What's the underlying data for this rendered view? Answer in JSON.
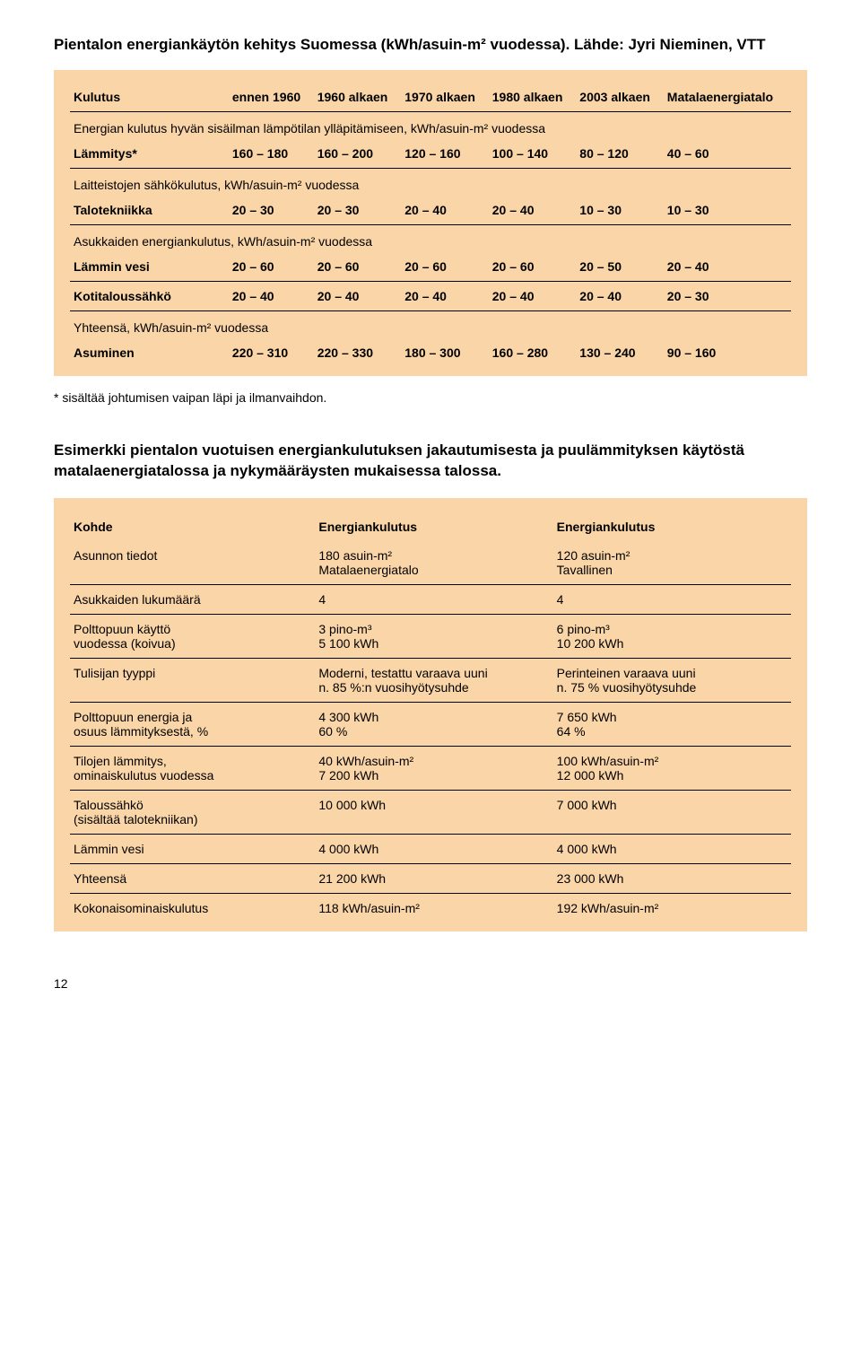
{
  "section1": {
    "title": "Pientalon energiankäytön kehitys Suomessa (kWh/asuin-m² vuodessa). Lähde: Jyri Nieminen, VTT",
    "headers": [
      "Kulutus",
      "ennen 1960",
      "1960 alkaen",
      "1970 alkaen",
      "1980 alkaen",
      "2003 alkaen",
      "Matalaenergiatalo"
    ],
    "group1_label": "Energian kulutus hyvän sisäilman lämpötilan ylläpitämiseen, kWh/asuin-m² vuodessa",
    "row1": [
      "Lämmitys*",
      "160 – 180",
      "160 – 200",
      "120 – 160",
      "100 – 140",
      "80 – 120",
      "40 – 60"
    ],
    "group2_label": "Laitteistojen sähkökulutus, kWh/asuin-m² vuodessa",
    "row2": [
      "Talotekniikka",
      "20 – 30",
      "20 – 30",
      "20 – 40",
      "20 – 40",
      "10 – 30",
      "10 – 30"
    ],
    "group3_label": "Asukkaiden energiankulutus, kWh/asuin-m² vuodessa",
    "row3": [
      "Lämmin vesi",
      "20 – 60",
      "20 – 60",
      "20 – 60",
      "20 – 60",
      "20 – 50",
      "20 – 40"
    ],
    "row4": [
      "Kotitaloussähkö",
      "20 – 40",
      "20 – 40",
      "20 – 40",
      "20 – 40",
      "20 – 40",
      "20 – 30"
    ],
    "group4_label": "Yhteensä, kWh/asuin-m² vuodessa",
    "row5": [
      "Asuminen",
      "220 – 310",
      "220 – 330",
      "180 – 300",
      "160 – 280",
      "130 – 240",
      "90 – 160"
    ],
    "footnote": "* sisältää johtumisen vaipan läpi ja ilmanvaihdon."
  },
  "section2": {
    "title": "Esimerkki pientalon vuotuisen energiankulutuksen jakautumisesta ja puulämmityksen käytöstä matalaenergiatalossa ja nykymääräysten mukaisessa talossa.",
    "headers": [
      "Kohde",
      "Energiankulutus",
      "Energiankulutus"
    ],
    "rows": [
      {
        "label": "Asunnon tiedot",
        "c1a": "180 asuin-m²",
        "c1b": "Matalaenergiatalo",
        "c2a": "120 asuin-m²",
        "c2b": "Tavallinen"
      },
      {
        "label": "Asukkaiden lukumäärä",
        "c1a": "4",
        "c1b": "",
        "c2a": "4",
        "c2b": ""
      },
      {
        "label": "Polttopuun käyttö",
        "label2": "vuodessa (koivua)",
        "c1a": "3 pino-m³",
        "c1b": "5 100 kWh",
        "c2a": "6 pino-m³",
        "c2b": "10 200 kWh"
      },
      {
        "label": "Tulisijan tyyppi",
        "c1a": "Moderni, testattu varaava uuni",
        "c1b": "n. 85 %:n vuosihyötysuhde",
        "c2a": "Perinteinen varaava uuni",
        "c2b": "n. 75 % vuosihyötysuhde"
      },
      {
        "label": "Polttopuun energia ja",
        "label2": "osuus lämmityksestä, %",
        "c1a": "4 300 kWh",
        "c1b": "60 %",
        "c2a": "7 650 kWh",
        "c2b": "64 %"
      },
      {
        "label": "Tilojen lämmitys,",
        "label2": "ominaiskulutus vuodessa",
        "c1a": "40 kWh/asuin-m²",
        "c1b": "7 200 kWh",
        "c2a": "100 kWh/asuin-m²",
        "c2b": "12 000 kWh"
      },
      {
        "label": "Taloussähkö",
        "label2": "(sisältää talotekniikan)",
        "c1a": "10 000 kWh",
        "c1b": "",
        "c2a": "7 000 kWh",
        "c2b": ""
      },
      {
        "label": "Lämmin vesi",
        "c1a": "4 000 kWh",
        "c1b": "",
        "c2a": "4 000 kWh",
        "c2b": ""
      },
      {
        "label": "Yhteensä",
        "c1a": "21 200 kWh",
        "c1b": "",
        "c2a": "23 000 kWh",
        "c2b": ""
      },
      {
        "label": "Kokonaisominaiskulutus",
        "c1a": "118 kWh/asuin-m²",
        "c1b": "",
        "c2a": "192 kWh/asuin-m²",
        "c2b": ""
      }
    ]
  },
  "page_number": "12"
}
